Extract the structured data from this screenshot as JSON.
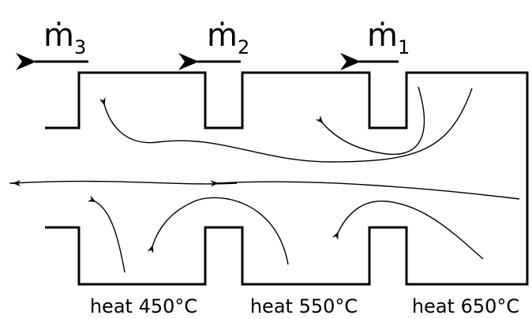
{
  "flows": [
    {
      "symbol": "ṁ",
      "subscript": "3"
    },
    {
      "symbol": "ṁ",
      "subscript": "2"
    },
    {
      "symbol": "ṁ",
      "subscript": "1"
    }
  ],
  "heaters": [
    {
      "label": "heat 450°C"
    },
    {
      "label": "heat 550°C"
    },
    {
      "label": "heat 650°C"
    }
  ]
}
